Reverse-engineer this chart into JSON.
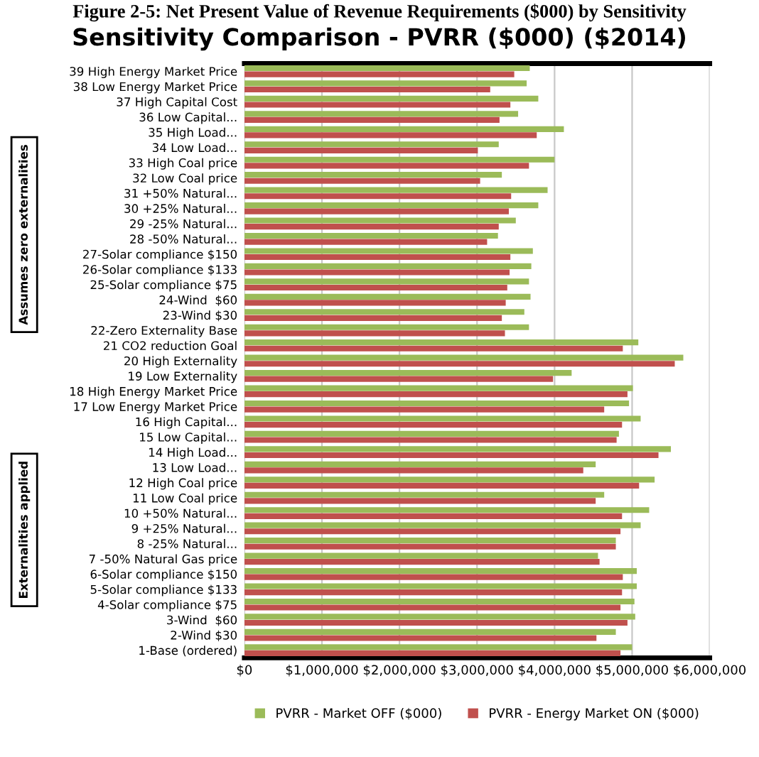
{
  "chart_data": {
    "type": "bar",
    "orientation": "horizontal",
    "title": "Figure 2-5: Net Present Value of Revenue Requirements ($000) by Sensitivity",
    "subtitle": "Sensitivity Comparison - PVRR ($000) ($2014)",
    "categories": [
      "39 High Energy Market Price",
      "38 Low Energy Market Price",
      "37 High Capital Cost",
      "36 Low Capital...",
      "35 High Load...",
      "34 Low Load...",
      "33 High Coal price",
      "32 Low Coal price",
      "31 +50% Natural...",
      "30 +25% Natural...",
      "29 -25% Natural...",
      "28 -50% Natural...",
      "27-Solar compliance $150",
      "26-Solar compliance $133",
      "25-Solar compliance $75",
      "24-Wind  $60",
      "23-Wind $30",
      "22-Zero Externality Base",
      "21 CO2 reduction Goal",
      "20 High Externality",
      "19 Low Externality",
      "18 High Energy Market Price",
      "17 Low Energy Market Price",
      "16 High Capital...",
      "15 Low Capital...",
      "14 High Load...",
      "13 Low Load...",
      "12 High Coal price",
      "11 Low Coal price",
      "10 +50% Natural...",
      "9 +25% Natural...",
      "8 -25% Natural...",
      "7 -50% Natural Gas price",
      "6-Solar compliance $150",
      "5-Solar compliance $133",
      "4-Solar compliance $75",
      "3-Wind  $60",
      "2-Wind $30",
      "1-Base (ordered)"
    ],
    "series": [
      {
        "name": "PVRR - Market OFF ($000)",
        "color": "#9bbb59",
        "values": [
          3680000,
          3640000,
          3790000,
          3530000,
          4120000,
          3280000,
          4000000,
          3320000,
          3910000,
          3790000,
          3500000,
          3270000,
          3720000,
          3700000,
          3670000,
          3690000,
          3610000,
          3670000,
          5080000,
          5660000,
          4220000,
          5010000,
          4960000,
          5110000,
          4830000,
          5500000,
          4530000,
          5290000,
          4640000,
          5220000,
          5110000,
          4790000,
          4560000,
          5060000,
          5060000,
          5030000,
          5040000,
          4790000,
          5000000
        ]
      },
      {
        "name": "PVRR - Energy Market ON ($000)",
        "color": "#c0504d",
        "values": [
          3480000,
          3170000,
          3430000,
          3290000,
          3770000,
          3010000,
          3670000,
          3040000,
          3440000,
          3410000,
          3280000,
          3130000,
          3430000,
          3420000,
          3390000,
          3370000,
          3320000,
          3360000,
          4880000,
          5550000,
          3980000,
          4940000,
          4640000,
          4870000,
          4800000,
          5340000,
          4370000,
          5090000,
          4530000,
          4870000,
          4850000,
          4790000,
          4580000,
          4880000,
          4870000,
          4850000,
          4940000,
          4540000,
          4850000
        ]
      }
    ],
    "xlim": [
      0,
      6000000
    ],
    "xticks": [
      {
        "value": 0,
        "label": "$0"
      },
      {
        "value": 1000000,
        "label": "$1,000,000"
      },
      {
        "value": 2000000,
        "label": "$2,000,000"
      },
      {
        "value": 3000000,
        "label": "$3,000,000"
      },
      {
        "value": 4000000,
        "label": "$4,000,000"
      },
      {
        "value": 5000000,
        "label": "$5,000,000"
      },
      {
        "value": 6000000,
        "label": "$6,000,000"
      }
    ],
    "grid": "x",
    "legend": "bottom",
    "annotations": [
      "Assumes zero externalities",
      "Externalities applied"
    ]
  }
}
